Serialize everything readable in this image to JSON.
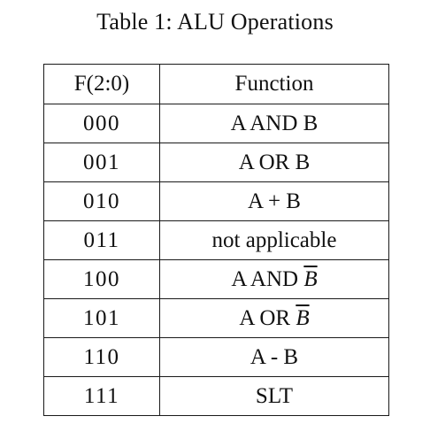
{
  "caption": "Table 1: ALU Operations",
  "table": {
    "headers": [
      "F(2:0)",
      "Function"
    ],
    "rows": [
      {
        "code": "000",
        "function_prefix": "A AND B",
        "function_bar": ""
      },
      {
        "code": "001",
        "function_prefix": "A OR B",
        "function_bar": ""
      },
      {
        "code": "010",
        "function_prefix": "A + B",
        "function_bar": ""
      },
      {
        "code": "011",
        "function_prefix": "not applicable",
        "function_bar": ""
      },
      {
        "code": "100",
        "function_prefix": "A AND ",
        "function_bar": "B"
      },
      {
        "code": "101",
        "function_prefix": "A OR ",
        "function_bar": "B"
      },
      {
        "code": "110",
        "function_prefix": "A - B",
        "function_bar": ""
      },
      {
        "code": "111",
        "function_prefix": "SLT",
        "function_bar": ""
      }
    ]
  }
}
